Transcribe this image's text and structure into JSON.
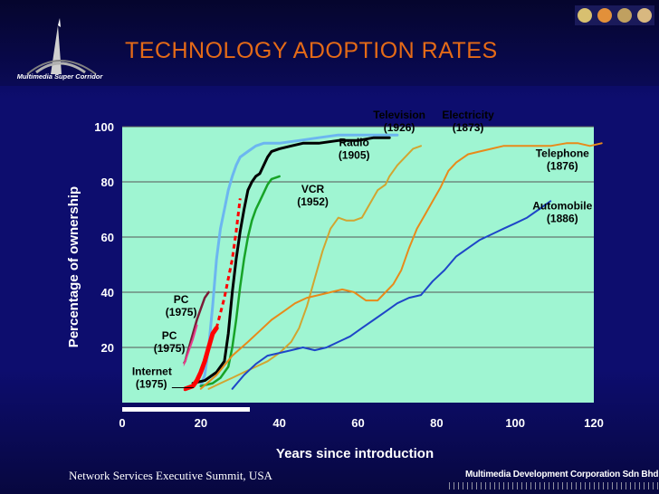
{
  "header": {
    "title": "TECHNOLOGY ADOPTION RATES",
    "logo_text": "Multimedia Super Corridor"
  },
  "footer": {
    "left": "Network Services Executive Summit, USA",
    "right": "Multimedia Development Corporation Sdn Bhd"
  },
  "colors": {
    "title": "#e46a17",
    "plot_bg": "#9ff5d2",
    "background": "#0d0d6e"
  },
  "chart_data": {
    "type": "line",
    "title": "TECHNOLOGY ADOPTION RATES",
    "xlabel": "Years since introduction",
    "ylabel": "Percentage of ownership",
    "xlim": [
      0,
      120
    ],
    "ylim": [
      0,
      100
    ],
    "xticks": [
      "0",
      "20",
      "40",
      "60",
      "80",
      "100",
      "120"
    ],
    "yticks": [
      "20",
      "40",
      "60",
      "80",
      "100"
    ],
    "grid": true,
    "series": [
      {
        "name": "Television",
        "year": "(1926)",
        "color": "#6cb6f0",
        "width": 3,
        "points": [
          [
            20,
            6
          ],
          [
            21,
            10
          ],
          [
            22,
            20
          ],
          [
            23,
            35
          ],
          [
            24,
            52
          ],
          [
            25,
            63
          ],
          [
            26,
            70
          ],
          [
            27,
            77
          ],
          [
            28,
            82
          ],
          [
            29,
            86
          ],
          [
            30,
            89
          ],
          [
            32,
            91
          ],
          [
            34,
            93
          ],
          [
            36,
            94
          ],
          [
            40,
            94
          ],
          [
            45,
            95
          ],
          [
            50,
            96
          ],
          [
            55,
            97
          ],
          [
            60,
            97
          ],
          [
            65,
            97
          ],
          [
            70,
            97
          ]
        ]
      },
      {
        "name": "Electricity",
        "year": "(1873)",
        "color": "#d2a530",
        "width": 2,
        "points": [
          [
            22,
            5
          ],
          [
            25,
            7
          ],
          [
            28,
            9
          ],
          [
            31,
            11
          ],
          [
            34,
            13
          ],
          [
            37,
            15
          ],
          [
            40,
            18
          ],
          [
            43,
            22
          ],
          [
            45,
            27
          ],
          [
            47,
            35
          ],
          [
            49,
            45
          ],
          [
            51,
            55
          ],
          [
            53,
            63
          ],
          [
            55,
            67
          ],
          [
            57,
            66
          ],
          [
            59,
            66
          ],
          [
            61,
            67
          ],
          [
            63,
            72
          ],
          [
            65,
            77
          ],
          [
            67,
            79
          ],
          [
            68,
            82
          ],
          [
            70,
            86
          ],
          [
            72,
            89
          ],
          [
            74,
            92
          ],
          [
            76,
            93
          ]
        ]
      },
      {
        "name": "Radio",
        "year": "(1905)",
        "color": "#000000",
        "width": 3,
        "points": [
          [
            18,
            7
          ],
          [
            21,
            8
          ],
          [
            24,
            11
          ],
          [
            26,
            15
          ],
          [
            27,
            25
          ],
          [
            28,
            40
          ],
          [
            29,
            52
          ],
          [
            30,
            62
          ],
          [
            31,
            70
          ],
          [
            32,
            77
          ],
          [
            33,
            80
          ],
          [
            34,
            82
          ],
          [
            35,
            83
          ],
          [
            36,
            86
          ],
          [
            37,
            89
          ],
          [
            38,
            91
          ],
          [
            40,
            92
          ],
          [
            43,
            93
          ],
          [
            46,
            94
          ],
          [
            50,
            94
          ],
          [
            55,
            95
          ],
          [
            60,
            95
          ],
          [
            64,
            96
          ],
          [
            68,
            96
          ]
        ]
      },
      {
        "name": "VCR",
        "year": "(1952)",
        "color": "#17a327",
        "width": 2.5,
        "points": [
          [
            20,
            6
          ],
          [
            23,
            7
          ],
          [
            25,
            9
          ],
          [
            27,
            13
          ],
          [
            28,
            20
          ],
          [
            29,
            30
          ],
          [
            30,
            42
          ],
          [
            31,
            52
          ],
          [
            32,
            60
          ],
          [
            33,
            66
          ],
          [
            34,
            70
          ],
          [
            35,
            73
          ],
          [
            36,
            76
          ],
          [
            37,
            79
          ],
          [
            38,
            81
          ],
          [
            40,
            82
          ]
        ]
      },
      {
        "name": "Telephone",
        "year": "(1876)",
        "color": "#e88a1a",
        "width": 2,
        "points": [
          [
            20,
            5
          ],
          [
            24,
            10
          ],
          [
            28,
            17
          ],
          [
            32,
            22
          ],
          [
            35,
            26
          ],
          [
            38,
            30
          ],
          [
            41,
            33
          ],
          [
            44,
            36
          ],
          [
            47,
            38
          ],
          [
            50,
            39
          ],
          [
            53,
            40
          ],
          [
            56,
            41
          ],
          [
            59,
            40
          ],
          [
            62,
            37
          ],
          [
            65,
            37
          ],
          [
            67,
            40
          ],
          [
            69,
            43
          ],
          [
            71,
            48
          ],
          [
            73,
            56
          ],
          [
            75,
            63
          ],
          [
            77,
            68
          ],
          [
            79,
            73
          ],
          [
            81,
            78
          ],
          [
            83,
            84
          ],
          [
            85,
            87
          ],
          [
            88,
            90
          ],
          [
            91,
            91
          ],
          [
            94,
            92
          ],
          [
            97,
            93
          ],
          [
            100,
            93
          ],
          [
            103,
            93
          ],
          [
            106,
            93
          ],
          [
            109,
            93
          ],
          [
            113,
            94
          ],
          [
            116,
            94
          ],
          [
            119,
            93
          ],
          [
            122,
            94
          ]
        ]
      },
      {
        "name": "Automobile",
        "year": "(1886)",
        "color": "#1e46c8",
        "width": 2,
        "points": [
          [
            28,
            5
          ],
          [
            31,
            10
          ],
          [
            34,
            14
          ],
          [
            37,
            17
          ],
          [
            40,
            18
          ],
          [
            43,
            19
          ],
          [
            46,
            20
          ],
          [
            49,
            19
          ],
          [
            52,
            20
          ],
          [
            55,
            22
          ],
          [
            58,
            24
          ],
          [
            61,
            27
          ],
          [
            64,
            30
          ],
          [
            67,
            33
          ],
          [
            70,
            36
          ],
          [
            73,
            38
          ],
          [
            76,
            39
          ],
          [
            79,
            44
          ],
          [
            82,
            48
          ],
          [
            85,
            53
          ],
          [
            88,
            56
          ],
          [
            91,
            59
          ],
          [
            94,
            61
          ],
          [
            97,
            63
          ],
          [
            100,
            65
          ],
          [
            103,
            67
          ],
          [
            106,
            70
          ],
          [
            109,
            73
          ]
        ]
      },
      {
        "name": "PC",
        "year": "(1975)",
        "color": "#7a1d37",
        "width": 2.5,
        "points": [
          [
            12,
            5
          ],
          [
            14,
            10
          ],
          [
            16,
            15
          ],
          [
            17,
            20
          ],
          [
            18,
            25
          ],
          [
            19,
            30
          ],
          [
            20,
            34
          ],
          [
            21,
            38
          ],
          [
            22,
            40
          ]
        ]
      },
      {
        "name": "PC",
        "year": "(1975)",
        "color": "#e83c8c",
        "width": 2,
        "points": [
          [
            12,
            5
          ],
          [
            14,
            8
          ],
          [
            15,
            12
          ],
          [
            16,
            15
          ],
          [
            17,
            19
          ],
          [
            18,
            23
          ],
          [
            19,
            28
          ]
        ]
      },
      {
        "name": "Internet",
        "year": "(1975)",
        "color": "#ff0000",
        "width": 5,
        "points": [
          [
            16,
            5
          ],
          [
            18,
            6
          ],
          [
            19,
            8
          ],
          [
            20,
            11
          ],
          [
            21,
            15
          ],
          [
            22,
            20
          ],
          [
            23,
            25
          ],
          [
            24,
            27
          ]
        ]
      },
      {
        "name": "",
        "year": "",
        "color": "#ff0000",
        "width": 3,
        "dashed": true,
        "points": [
          [
            24,
            27
          ],
          [
            26,
            38
          ],
          [
            28,
            52
          ],
          [
            29,
            62
          ],
          [
            30,
            74
          ]
        ]
      }
    ],
    "labels": [
      {
        "series": 0,
        "x": 70.5,
        "y": 103,
        "lines": [
          "Television",
          "(1926)"
        ]
      },
      {
        "series": 1,
        "x": 88,
        "y": 103,
        "lines": [
          "Electricity",
          "(1873)"
        ]
      },
      {
        "series": 2,
        "x": 59,
        "y": 93,
        "lines": [
          "Radio",
          "(1905)"
        ]
      },
      {
        "series": 3,
        "x": 48.5,
        "y": 76,
        "lines": [
          "VCR",
          "(1952)"
        ]
      },
      {
        "series": 4,
        "x": 112,
        "y": 89,
        "lines": [
          "Telephone",
          "(1876)"
        ]
      },
      {
        "series": 5,
        "x": 112,
        "y": 70,
        "lines": [
          "Automobile",
          "(1886)"
        ]
      },
      {
        "series": 6,
        "x": 15,
        "y": 36,
        "lines": [
          "PC",
          "(1975)"
        ]
      },
      {
        "series": 7,
        "x": 12,
        "y": 23,
        "lines": [
          "PC",
          "(1975)"
        ]
      },
      {
        "series": 8,
        "x": 2.5,
        "y": 10,
        "lines": [
          "Internet",
          "(1975)"
        ]
      }
    ]
  }
}
